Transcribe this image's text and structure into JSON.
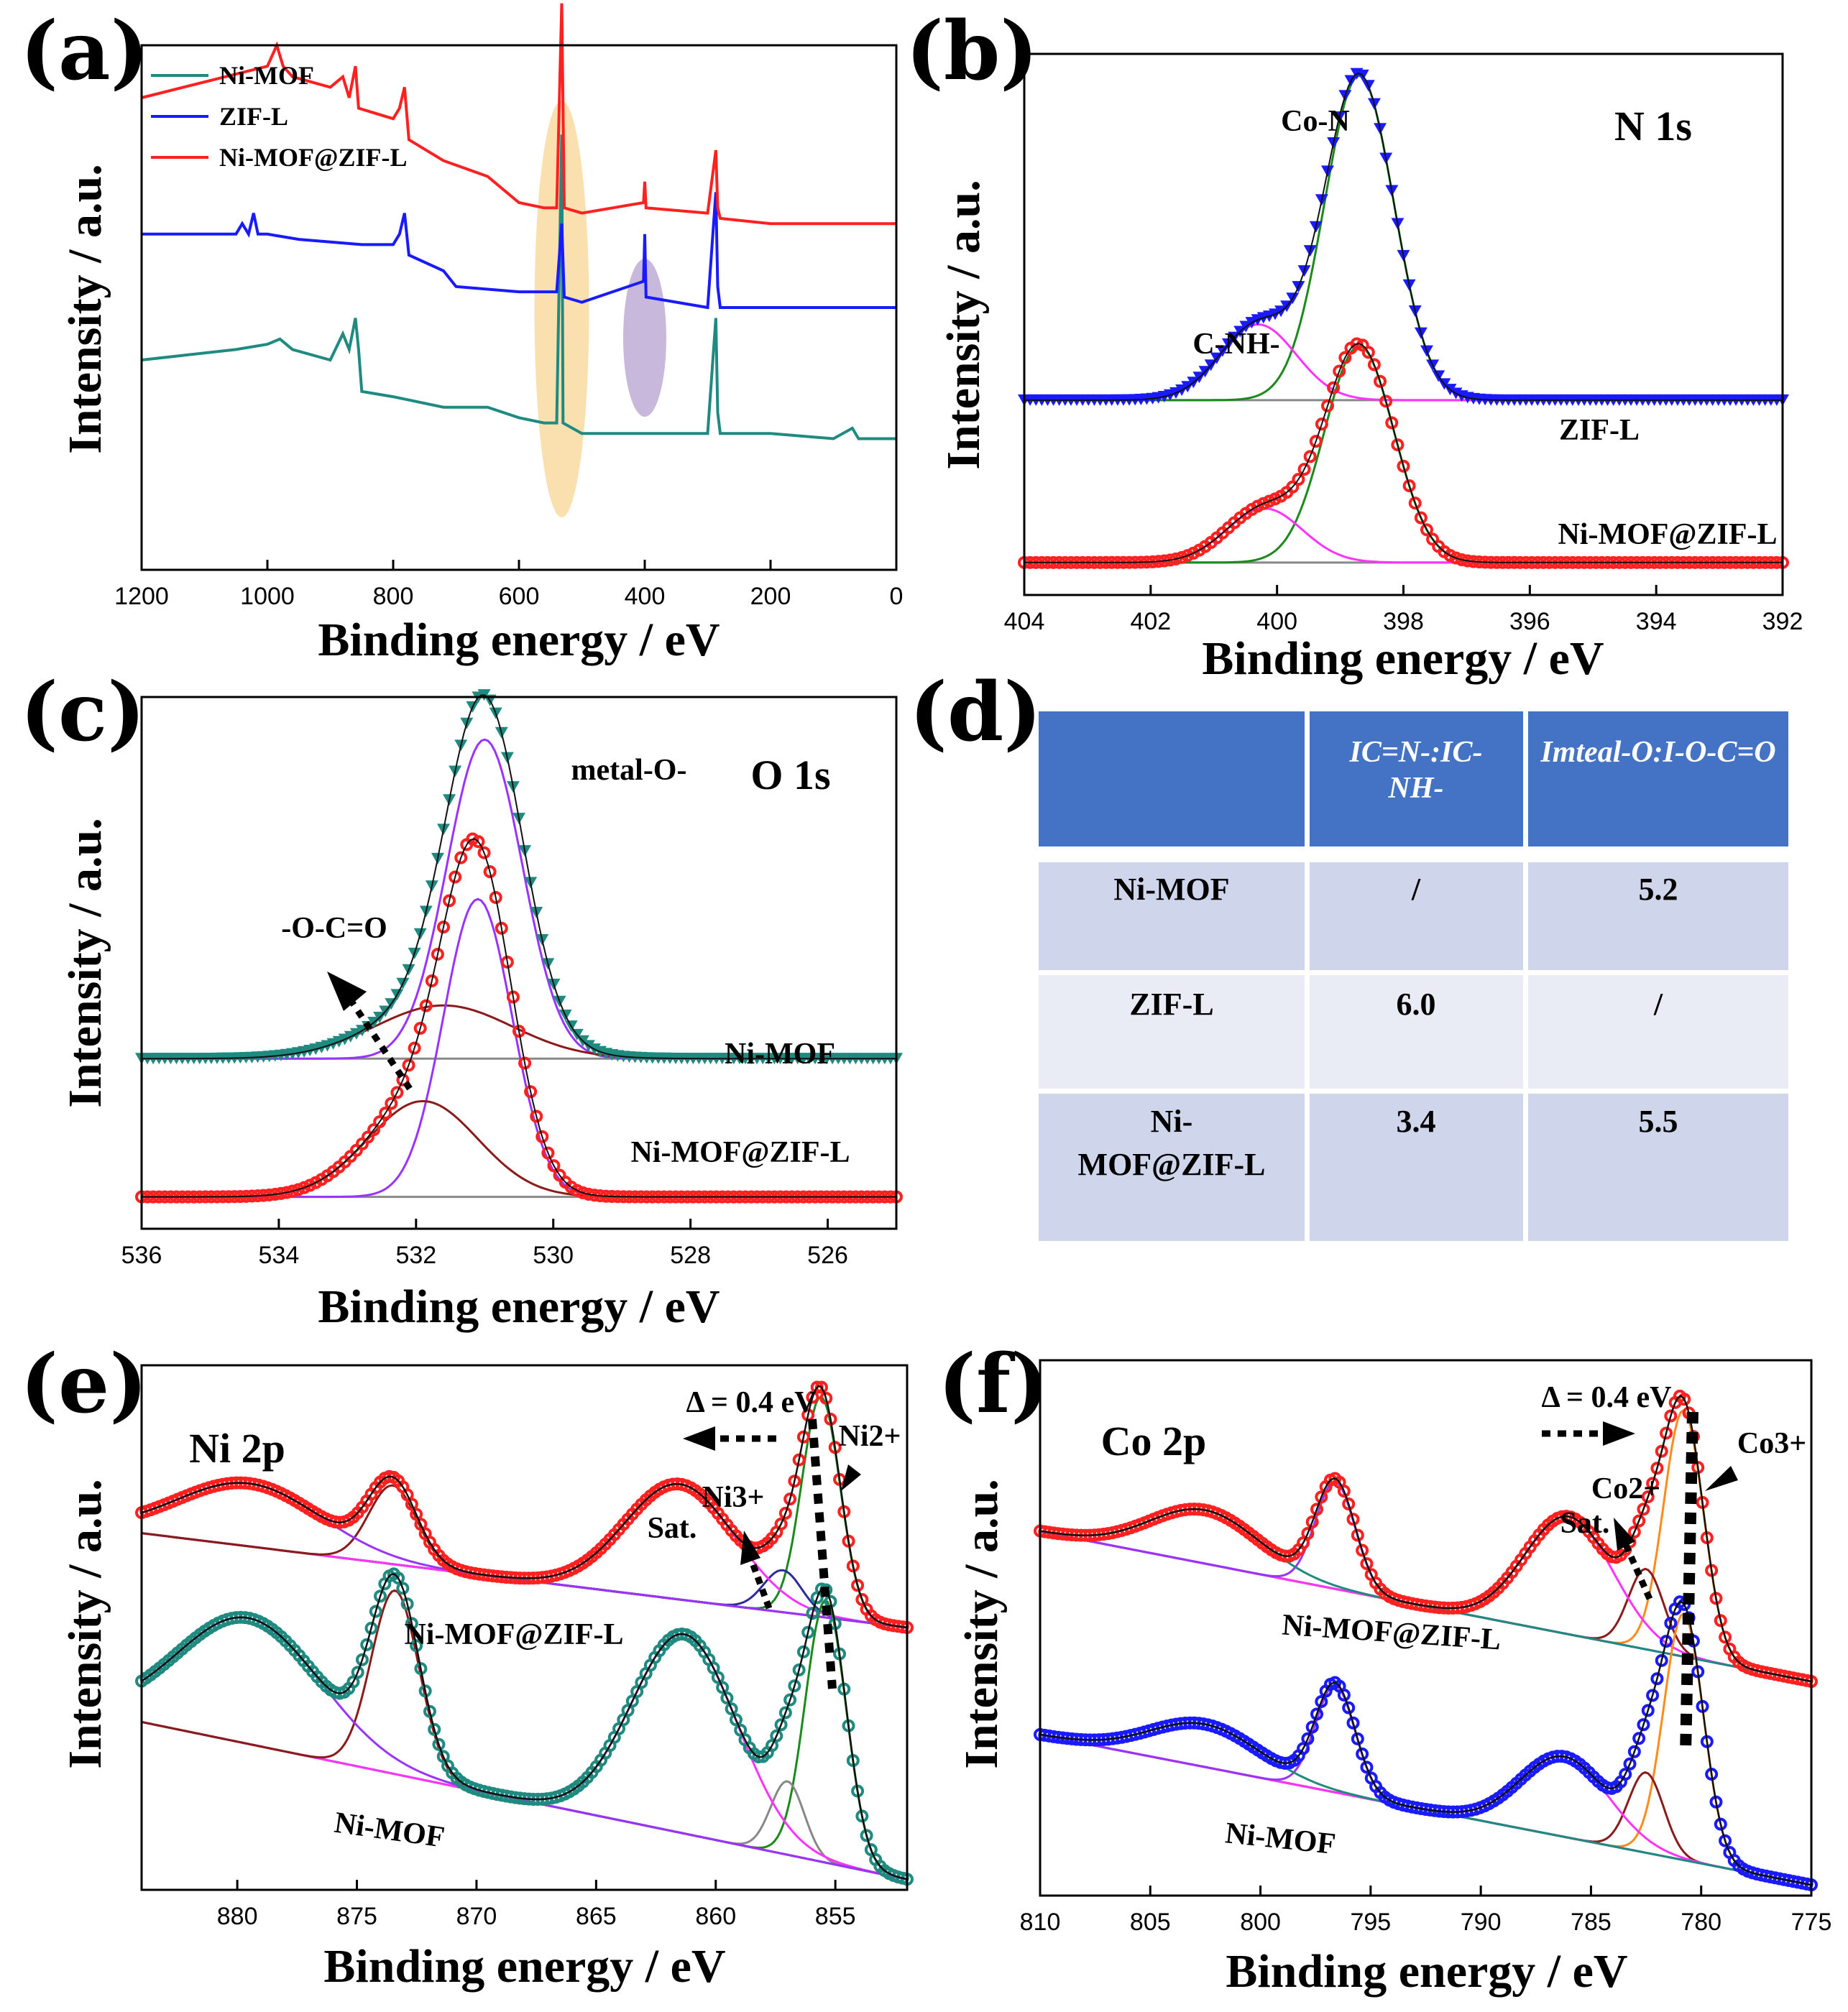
{
  "chart_data": [
    {
      "id": "a",
      "type": "line",
      "panel_label": "(a)",
      "xlabel": "Binding energy / eV",
      "ylabel": "Intensity / a.u.",
      "xlim": [
        1200,
        0
      ],
      "xticks": [
        "1200",
        "1000",
        "800",
        "600",
        "400",
        "200",
        "0"
      ],
      "legend": [
        {
          "name": "Ni-MOF",
          "color": "#1f8a80"
        },
        {
          "name": "ZIF-L",
          "color": "#1a1aff"
        },
        {
          "name": "Ni-MOF@ZIF-L",
          "color": "#ff2020"
        }
      ],
      "series": [
        {
          "name": "Ni-MOF",
          "color": "#1f8a80",
          "offset": 0.28,
          "x": [
            1200,
            1050,
            1000,
            980,
            960,
            900,
            880,
            870,
            860,
            855,
            850,
            800,
            720,
            650,
            600,
            560,
            540,
            532,
            530,
            500,
            400,
            300,
            287,
            284,
            280,
            200,
            100,
            70,
            60,
            0
          ],
          "y": [
            0.12,
            0.14,
            0.15,
            0.16,
            0.14,
            0.12,
            0.17,
            0.14,
            0.2,
            0.14,
            0.06,
            0.05,
            0.03,
            0.03,
            0.01,
            0.0,
            0.0,
            0.55,
            0.0,
            -0.02,
            -0.02,
            -0.02,
            0.2,
            0.02,
            -0.02,
            -0.02,
            -0.03,
            -0.01,
            -0.03,
            -0.03
          ]
        },
        {
          "name": "ZIF-L",
          "color": "#1a1aff",
          "offset": 0.52,
          "x": [
            1200,
            1100,
            1050,
            1040,
            1030,
            1022,
            1015,
            1000,
            950,
            850,
            800,
            790,
            782,
            775,
            720,
            700,
            600,
            540,
            532,
            528,
            500,
            402,
            400,
            398,
            300,
            287,
            284,
            280,
            200,
            100,
            0
          ],
          "y": [
            0.12,
            0.12,
            0.12,
            0.14,
            0.12,
            0.16,
            0.12,
            0.12,
            0.11,
            0.1,
            0.1,
            0.12,
            0.16,
            0.08,
            0.05,
            0.02,
            0.01,
            0.01,
            0.14,
            0.0,
            -0.01,
            0.03,
            0.12,
            0.0,
            -0.02,
            0.2,
            0.02,
            -0.02,
            -0.02,
            -0.02,
            -0.02
          ]
        },
        {
          "name": "Ni-MOF@ZIF-L",
          "color": "#ff2020",
          "offset": 0.68,
          "x": [
            1200,
            1100,
            1000,
            985,
            975,
            960,
            900,
            880,
            870,
            860,
            855,
            800,
            790,
            782,
            775,
            720,
            650,
            600,
            560,
            540,
            532,
            528,
            500,
            402,
            400,
            398,
            300,
            287,
            284,
            280,
            200,
            100,
            0
          ],
          "y": [
            0.22,
            0.25,
            0.28,
            0.32,
            0.28,
            0.26,
            0.24,
            0.26,
            0.22,
            0.28,
            0.2,
            0.18,
            0.2,
            0.24,
            0.14,
            0.1,
            0.07,
            0.02,
            0.01,
            0.01,
            0.4,
            0.01,
            0.0,
            0.02,
            0.06,
            0.01,
            0.0,
            0.12,
            0.01,
            -0.01,
            -0.02,
            -0.02,
            -0.02
          ]
        }
      ],
      "highlights": [
        {
          "center": 532,
          "color": "#f5c76b"
        },
        {
          "center": 400,
          "color": "#9b7fc0"
        }
      ]
    },
    {
      "id": "b",
      "type": "line",
      "panel_label": "(b)",
      "xlabel": "Binding energy / eV",
      "ylabel": "Intensity / a.u.",
      "xlim": [
        404,
        392
      ],
      "xticks": [
        "404",
        "402",
        "400",
        "398",
        "396",
        "394",
        "392"
      ],
      "title": "N 1s",
      "annotations": [
        "Co-N",
        "C-NH-",
        "ZIF-L",
        "Ni-MOF@ZIF-L"
      ],
      "spectra": [
        {
          "name": "ZIF-L",
          "baseline": 0.36,
          "marker_color": "#1a1aff",
          "components": [
            {
              "center": 398.7,
              "amp": 0.6,
              "sigma": 0.55,
              "color": "#1a8a1a"
            },
            {
              "center": 400.3,
              "amp": 0.14,
              "sigma": 0.6,
              "color": "#ff33ff"
            }
          ]
        },
        {
          "name": "Ni-MOF@ZIF-L",
          "baseline": 0.06,
          "marker_color": "#ff2020",
          "components": [
            {
              "center": 398.7,
              "amp": 0.4,
              "sigma": 0.55,
              "color": "#1a8a1a"
            },
            {
              "center": 400.2,
              "amp": 0.1,
              "sigma": 0.6,
              "color": "#ff33ff"
            }
          ]
        }
      ]
    },
    {
      "id": "c",
      "type": "line",
      "panel_label": "(c)",
      "xlabel": "Binding energy / eV",
      "ylabel": "Intensity / a.u.",
      "xlim": [
        536,
        525
      ],
      "xticks": [
        "536",
        "534",
        "532",
        "530",
        "528",
        "526"
      ],
      "title": "O 1s",
      "annotations": [
        "metal-O-",
        "-O-C=O",
        "Ni-MOF",
        "Ni-MOF@ZIF-L"
      ],
      "spectra": [
        {
          "name": "Ni-MOF",
          "baseline": 0.32,
          "marker_color": "#1f8a80",
          "components": [
            {
              "center": 531.0,
              "amp": 0.6,
              "sigma": 0.55,
              "color": "#9933ff"
            },
            {
              "center": 531.6,
              "amp": 0.1,
              "sigma": 1.0,
              "color": "#8b1a1a"
            }
          ]
        },
        {
          "name": "Ni-MOF@ZIF-L",
          "baseline": 0.06,
          "marker_color": "#ff2020",
          "components": [
            {
              "center": 531.1,
              "amp": 0.56,
              "sigma": 0.5,
              "color": "#9933ff"
            },
            {
              "center": 531.9,
              "amp": 0.18,
              "sigma": 0.8,
              "color": "#8b1a1a"
            }
          ]
        }
      ]
    },
    {
      "id": "e",
      "type": "line",
      "panel_label": "(e)",
      "xlabel": "Binding energy / eV",
      "ylabel": "Intensity / a.u.",
      "xlim": [
        884,
        852
      ],
      "xticks": [
        "880",
        "875",
        "870",
        "865",
        "860",
        "855"
      ],
      "title": "Ni 2p",
      "annotations": [
        "Δ = 0.4 eV",
        "Ni2+",
        "Ni3+",
        "Sat.",
        "Ni-MOF@ZIF-L",
        "Ni-MOF"
      ],
      "spectra": [
        {
          "name": "Ni-MOF@ZIF-L",
          "base_hi": 0.68,
          "base_lo": 0.5,
          "marker_color": "#ff2020",
          "components": [
            {
              "center": 855.6,
              "amp": 0.42,
              "sigma": 0.8,
              "color": "#1a8a1a"
            },
            {
              "center": 857.2,
              "amp": 0.08,
              "sigma": 0.8,
              "color": "#2b2b9b"
            },
            {
              "center": 861.5,
              "amp": 0.22,
              "sigma": 2.3,
              "color": "#ff33ff"
            },
            {
              "center": 873.5,
              "amp": 0.15,
              "sigma": 1.0,
              "color": "#8b1a1a"
            },
            {
              "center": 879.5,
              "amp": 0.12,
              "sigma": 3.0,
              "color": "#9933ff"
            }
          ]
        },
        {
          "name": "Ni-MOF",
          "base_hi": 0.32,
          "base_lo": 0.02,
          "marker_color": "#1f8a80",
          "components": [
            {
              "center": 855.4,
              "amp": 0.5,
              "sigma": 0.85,
              "color": "#1a8a1a"
            },
            {
              "center": 857.0,
              "amp": 0.14,
              "sigma": 0.7,
              "color": "#888888"
            },
            {
              "center": 861.3,
              "amp": 0.38,
              "sigma": 2.2,
              "color": "#ff33ff"
            },
            {
              "center": 873.4,
              "amp": 0.35,
              "sigma": 1.0,
              "color": "#8b1a1a"
            },
            {
              "center": 879.5,
              "amp": 0.24,
              "sigma": 3.0,
              "color": "#9933ff"
            }
          ]
        }
      ]
    },
    {
      "id": "f",
      "type": "line",
      "panel_label": "(f)",
      "xlabel": "Binding energy / eV",
      "ylabel": "Intensity / a.u.",
      "xlim": [
        810,
        775
      ],
      "xticks": [
        "810",
        "805",
        "800",
        "795",
        "790",
        "785",
        "780",
        "775"
      ],
      "title": "Co 2p",
      "annotations": [
        "Δ = 0.4 eV",
        "Co3+",
        "Co2+",
        "Sat.",
        "Ni-MOF@ZIF-L",
        "Ni-MOF"
      ],
      "spectra": [
        {
          "name": "Ni-MOF@ZIF-L",
          "base_hi": 0.68,
          "base_lo": 0.4,
          "marker_color": "#ff2020",
          "components": [
            {
              "center": 780.8,
              "amp": 0.46,
              "sigma": 0.9,
              "color": "#ff8c1a"
            },
            {
              "center": 782.5,
              "amp": 0.15,
              "sigma": 0.8,
              "color": "#8b1a1a"
            },
            {
              "center": 786.0,
              "amp": 0.22,
              "sigma": 2.0,
              "color": "#ff33ff"
            },
            {
              "center": 796.6,
              "amp": 0.2,
              "sigma": 0.9,
              "color": "#9933ff"
            },
            {
              "center": 802.5,
              "amp": 0.1,
              "sigma": 2.5,
              "color": "#1f8a80"
            }
          ]
        },
        {
          "name": "Ni-MOF",
          "base_hi": 0.3,
          "base_lo": 0.02,
          "marker_color": "#1a1aff",
          "components": [
            {
              "center": 780.8,
              "amp": 0.46,
              "sigma": 0.9,
              "color": "#ff8c1a"
            },
            {
              "center": 782.5,
              "amp": 0.15,
              "sigma": 0.8,
              "color": "#8b1a1a"
            },
            {
              "center": 786.2,
              "amp": 0.15,
              "sigma": 2.0,
              "color": "#ff33ff"
            },
            {
              "center": 796.6,
              "amp": 0.2,
              "sigma": 0.9,
              "color": "#9933ff"
            },
            {
              "center": 802.5,
              "amp": 0.08,
              "sigma": 2.5,
              "color": "#1f8a80"
            }
          ]
        }
      ]
    },
    {
      "id": "d",
      "type": "table",
      "panel_label": "(d)",
      "columns": [
        {
          "main": "",
          "sub": ""
        },
        {
          "main": "IC=N-:IC-",
          "sub": "NH-"
        },
        {
          "main": "Imteal-O:I-O-C=O",
          "sub": ""
        }
      ],
      "rows": [
        {
          "name": "Ni-MOF",
          "name_line2": "",
          "c1": "/",
          "c2": "5.2"
        },
        {
          "name": "ZIF-L",
          "name_line2": "",
          "c1": "6.0",
          "c2": "/"
        },
        {
          "name": "Ni-",
          "name_line2": "MOF@ZIF-L",
          "c1": "3.4",
          "c2": "5.5"
        }
      ]
    }
  ],
  "labels": {
    "a_legend_0": "Ni-MOF",
    "a_legend_1": "ZIF-L",
    "a_legend_2": "Ni-MOF@ZIF-L"
  }
}
